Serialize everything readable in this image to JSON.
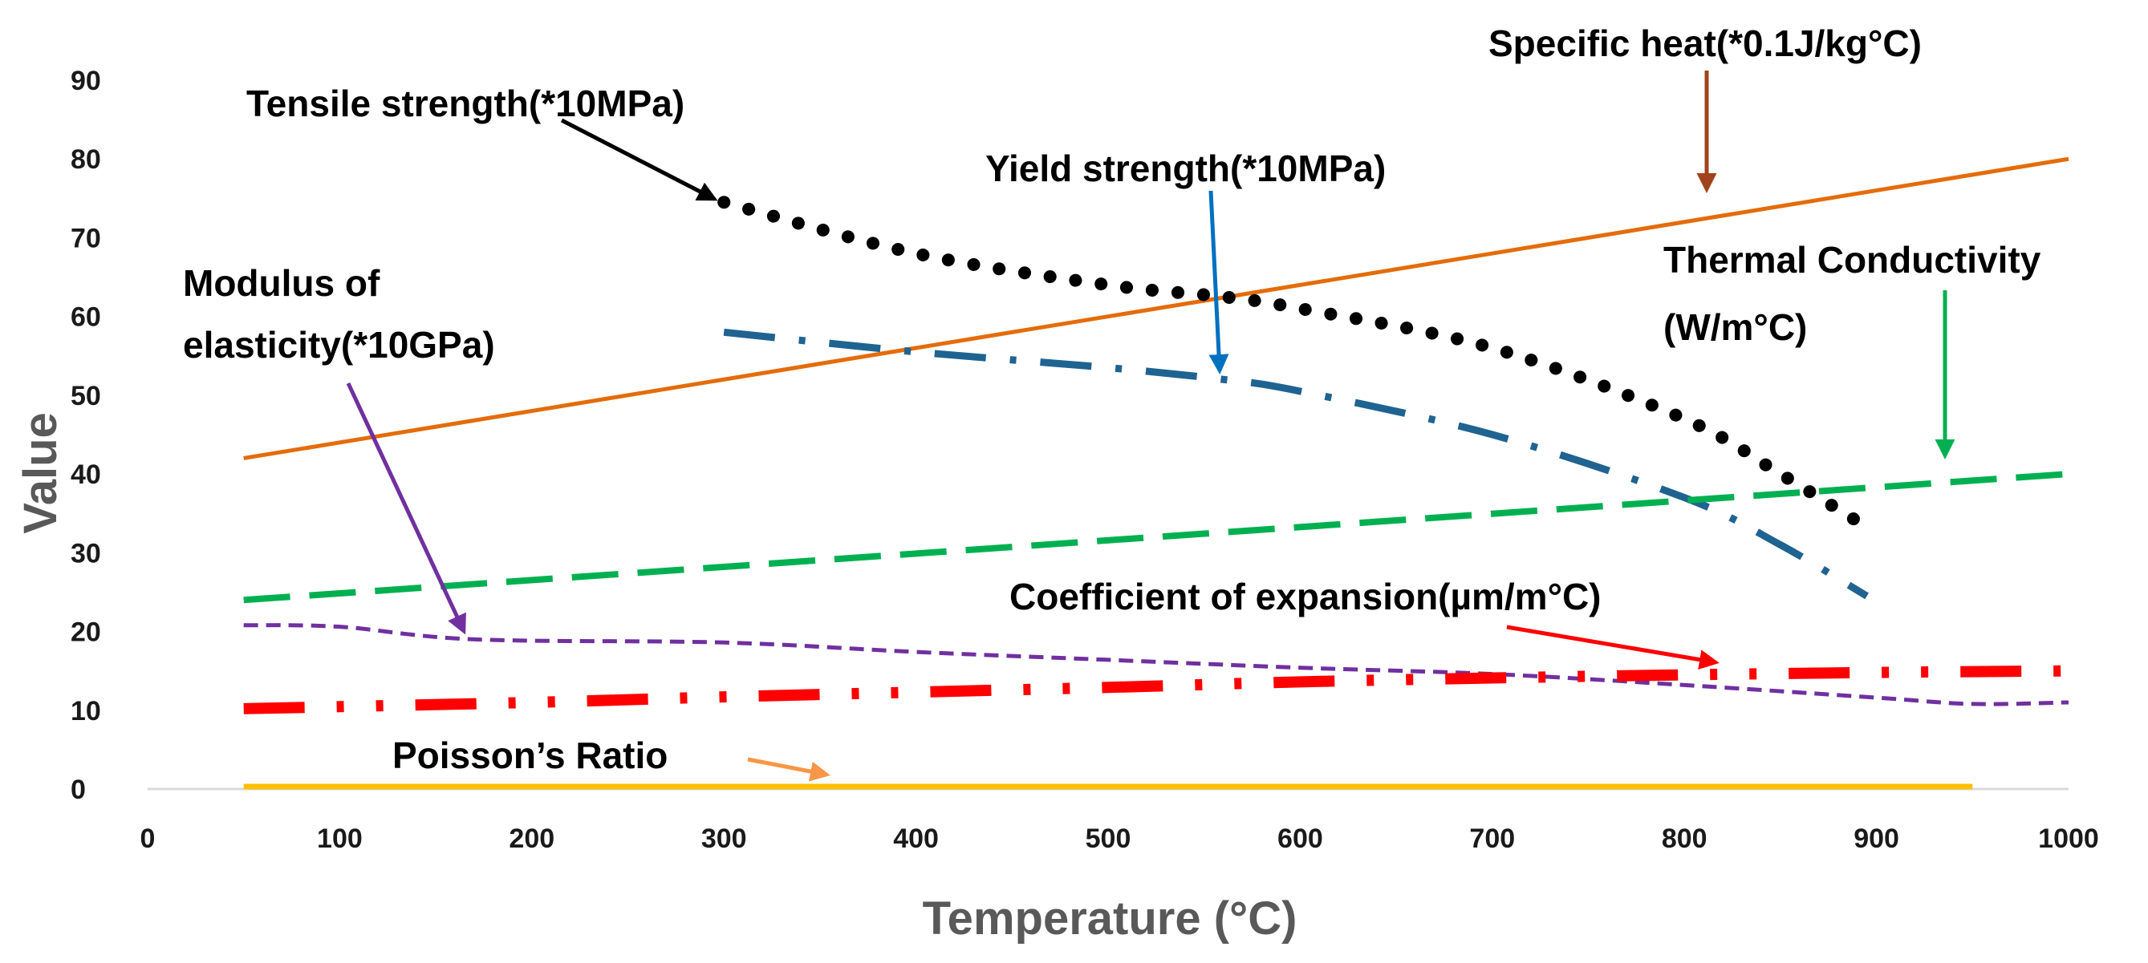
{
  "chart_data": {
    "type": "line",
    "title": "",
    "xlabel": "Temperature (°C)",
    "ylabel": "Value",
    "xlim": [
      0,
      1000
    ],
    "ylim": [
      0,
      90
    ],
    "xticks": [
      "0",
      "100",
      "200",
      "300",
      "400",
      "500",
      "600",
      "700",
      "800",
      "900",
      "1000"
    ],
    "yticks": [
      "0",
      "10",
      "20",
      "30",
      "40",
      "50",
      "60",
      "70",
      "80",
      "90"
    ],
    "grid": false,
    "series": [
      {
        "key": "specific_heat",
        "name": "Specific heat(*0.1J/kg°C)",
        "color": "#e46c0a",
        "dash": "solid",
        "x": [
          50,
          1000
        ],
        "y": [
          42,
          80
        ]
      },
      {
        "key": "tensile",
        "name": "Tensile strength(*10MPa)",
        "color": "#000000",
        "dash": "dots",
        "x": [
          300,
          400,
          500,
          560,
          600,
          700,
          800,
          850,
          890
        ],
        "y": [
          74.5,
          68,
          64,
          62.5,
          61,
          56,
          47,
          40,
          34
        ]
      },
      {
        "key": "yield",
        "name": "Yield strength(*10MPa)",
        "color": "#1f6391",
        "dash": "dashdot",
        "x": [
          300,
          400,
          500,
          560,
          600,
          700,
          800,
          850,
          895
        ],
        "y": [
          58,
          55.5,
          53.5,
          52,
          50.5,
          45,
          37,
          31,
          24.5
        ]
      },
      {
        "key": "thermal",
        "name": "Thermal Conductivity (W/m°C)",
        "color": "#00b050",
        "dash": "dash",
        "x": [
          50,
          1000
        ],
        "y": [
          24,
          40
        ]
      },
      {
        "key": "modulus",
        "name": "Modulus of elasticity(*10GPa)",
        "color": "#7030a0",
        "dash": "shortdash",
        "x": [
          50,
          100,
          170,
          300,
          400,
          500,
          600,
          700,
          800,
          900,
          950,
          1000
        ],
        "y": [
          20.8,
          20.6,
          19,
          18.6,
          17.4,
          16.4,
          15.4,
          14.6,
          13.2,
          11.6,
          10.8,
          11
        ]
      },
      {
        "key": "expansion",
        "name": "Coefficient of expansion(µm/m°C)",
        "color": "#ff0000",
        "dash": "longdashdotdot",
        "x": [
          50,
          200,
          300,
          400,
          500,
          600,
          700,
          800,
          900,
          1000
        ],
        "y": [
          10.2,
          11,
          11.7,
          12.3,
          12.9,
          13.6,
          14.1,
          14.5,
          14.8,
          15
        ]
      },
      {
        "key": "poisson",
        "name": "Poisson’s Ratio",
        "color": "#ffc000",
        "dash": "solid",
        "x": [
          50,
          950
        ],
        "y": [
          0.3,
          0.3
        ]
      }
    ],
    "annotations": [
      {
        "key": "specific_heat",
        "text": "Specific heat(*0.1J/kg°C)",
        "color": "#a0441b"
      },
      {
        "key": "tensile",
        "text": "Tensile strength(*10MPa)",
        "color": "#000000"
      },
      {
        "key": "yield",
        "text": "Yield strength(*10MPa)",
        "color": "#1f6391"
      },
      {
        "key": "thermal",
        "text": "Thermal  Conductivity",
        "text2": "(W/m°C)",
        "color": "#00b050"
      },
      {
        "key": "modulus",
        "text": "Modulus  of",
        "text2": "elasticity(*10GPa)",
        "color": "#7030a0"
      },
      {
        "key": "expansion",
        "text": "Coefficient of expansion(µm/m°C)",
        "color": "#ff0000"
      },
      {
        "key": "poisson",
        "text": "Poisson’s  Ratio",
        "color": "#f79646"
      }
    ]
  }
}
